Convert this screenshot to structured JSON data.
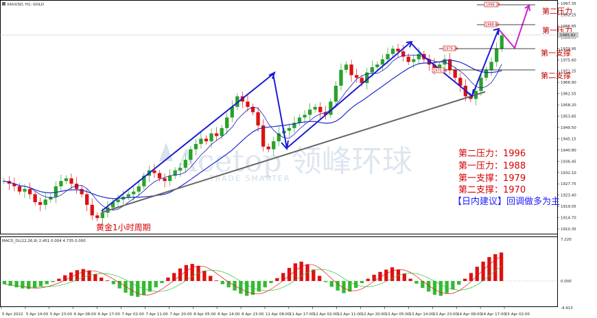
{
  "header": {
    "symbol_label": "XAUUSD, H1:  GOLD"
  },
  "macd": {
    "label": "MACD_DL(12,26,9) 2.451 0.004 4.735 0.000",
    "axis_top": "7.220",
    "axis_zero": "0.000",
    "axis_bottom": "-4.913"
  },
  "price_axis": {
    "labels": [
      "1997.35",
      "1992.25",
      "1988.85",
      "1984.05",
      "1979.95",
      "1975.60",
      "1971.25",
      "1966.90",
      "1962.55",
      "1958.20",
      "1953.85",
      "1949.50",
      "1945.15",
      "1940.80",
      "1936.45",
      "1932.10",
      "1927.75",
      "1923.40",
      "1919.05",
      "1914.70",
      "1910.35"
    ],
    "current_price": "1985.82"
  },
  "time_axis": {
    "labels": [
      "5 Apr 2022",
      "5 Apr 14:00",
      "5 Apr 23:00",
      "6 Apr 08:00",
      "6 Apr 17:00",
      "7 Apr 02:00",
      "7 Apr 11:00",
      "7 Apr 20:00",
      "8 Apr 05:00",
      "8 Apr 14:00",
      "8 Apr 23:00",
      "11 Apr 08:00",
      "11 Apr 17:00",
      "12 Apr 02:00",
      "12 Apr 11:00",
      "12 Apr 20:00",
      "13 Apr 05:00",
      "13 Apr 14:00",
      "13 Apr 23:00",
      "14 Apr 08:00",
      "14 Apr 17:00",
      "15 Apr 02:00"
    ]
  },
  "levels": {
    "r2": {
      "label": "第二压力",
      "box": "1996.24"
    },
    "r1": {
      "label": "第一压力",
      "box": "1988.62"
    },
    "s1": {
      "label": "第一支撑",
      "box": "1979.26"
    },
    "s2": {
      "label": "第二支撑",
      "box": "1970.62"
    }
  },
  "annotations": {
    "chart_caption": "黄金1小时周期",
    "r2_line": "第二压力：1996",
    "r1_line": "第一压力：1988",
    "s1_line": "第一支撑：1979",
    "s2_line": "第二支撑：1970",
    "advice": "【日内建议】回调做多为主"
  },
  "watermark": {
    "text": "Acetop 领峰环球",
    "sub": "TRADE SMARTER"
  },
  "colors": {
    "bull": "#2aa12a",
    "bear": "#dd1111",
    "trend_arrows": "#1a1ad8",
    "forecast": "#cc22cc",
    "trendline": "#666666",
    "ma_fast": "#1a1ab8",
    "ma_slow": "#1a2ad0",
    "macd_signal_red": "#dd1111",
    "macd_signal_green": "#33bb33"
  },
  "chart_data": {
    "type": "candlestick",
    "title": "XAUUSD, H1",
    "ylim": [
      1910.35,
      1997.35
    ],
    "ohlc_close_samples": [
      1930,
      1929,
      1928,
      1926,
      1927,
      1925,
      1922,
      1921,
      1923,
      1924,
      1928,
      1930,
      1931,
      1929,
      1927,
      1925,
      1921,
      1917,
      1916,
      1918,
      1920,
      1922,
      1923,
      1924,
      1925,
      1926,
      1928,
      1932,
      1934,
      1933,
      1931,
      1930,
      1932,
      1934,
      1935,
      1938,
      1942,
      1944,
      1946,
      1945,
      1948,
      1947,
      1950,
      1954,
      1958,
      1962,
      1960,
      1958,
      1956,
      1951,
      1943,
      1942,
      1945,
      1948,
      1949,
      1950,
      1952,
      1954,
      1955,
      1957,
      1958,
      1956,
      1955,
      1960,
      1966,
      1972,
      1974,
      1970,
      1969,
      1967,
      1971,
      1973,
      1974,
      1976,
      1978,
      1980,
      1979,
      1977,
      1975,
      1976,
      1978,
      1976,
      1974,
      1972,
      1974,
      1976,
      1972,
      1969,
      1966,
      1962,
      1961,
      1964,
      1969,
      1972,
      1975,
      1980,
      1985
    ],
    "macd_hist_samples": [
      -0.6,
      -0.9,
      -1.2,
      -1.4,
      -1.5,
      -1.3,
      -1.0,
      -0.6,
      -0.2,
      0.4,
      1.0,
      1.5,
      1.9,
      2.1,
      1.8,
      1.2,
      0.6,
      0.1,
      -0.6,
      -1.4,
      -2.2,
      -2.8,
      -3.0,
      -2.6,
      -2.0,
      -1.2,
      -0.4,
      0.6,
      1.4,
      2.2,
      2.8,
      3.0,
      2.6,
      1.8,
      0.9,
      0.1,
      -0.6,
      -1.2,
      -1.8,
      -2.4,
      -2.8,
      -2.6,
      -2.0,
      -1.2,
      -0.4,
      0.5,
      1.4,
      2.3,
      3.1,
      3.4,
      2.9,
      2.0,
      0.9,
      -0.2,
      -1.1,
      -1.8,
      -2.3,
      -2.0,
      -1.3,
      -0.4,
      0.4,
      1.1,
      1.6,
      2.0,
      2.4,
      2.0,
      1.3,
      0.4,
      -0.5,
      -1.3,
      -2.0,
      -2.6,
      -2.8,
      -2.3,
      -1.6,
      -0.7,
      0.4,
      1.4,
      2.5,
      3.4,
      4.2,
      4.7,
      5.0
    ]
  }
}
